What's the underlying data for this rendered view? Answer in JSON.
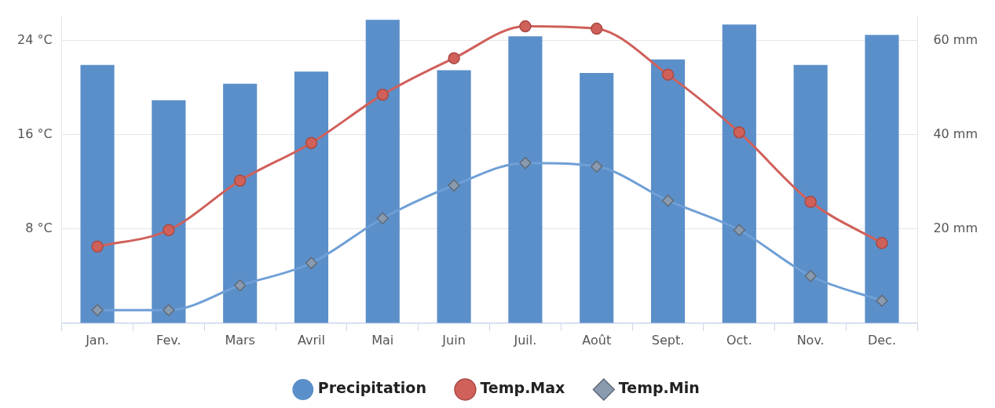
{
  "chart_data": {
    "type": "bar",
    "categories": [
      "Jan.",
      "Fev.",
      "Mars",
      "Avril",
      "Mai",
      "Juin",
      "Juil.",
      "Août",
      "Sept.",
      "Oct.",
      "Nov.",
      "Dec."
    ],
    "series": [
      {
        "name": "Precipitation",
        "axis": "y2",
        "color": "#5b8fc9",
        "values": [
          54.8,
          47.3,
          50.8,
          53.4,
          64.4,
          53.7,
          60.9,
          53.1,
          56.0,
          63.4,
          54.8,
          61.2
        ]
      },
      {
        "name": "Temp.Max",
        "type": "line",
        "axis": "y",
        "color": "#d0605a",
        "marker": "circle",
        "values": [
          6.5,
          7.9,
          12.1,
          15.3,
          19.4,
          22.5,
          25.2,
          25.0,
          21.1,
          16.2,
          10.3,
          6.8
        ]
      },
      {
        "name": "Temp.Min",
        "type": "line",
        "axis": "y",
        "color": "#6f9fd6",
        "marker": "diamond",
        "values": [
          1.1,
          1.1,
          3.2,
          5.1,
          8.9,
          11.7,
          13.6,
          13.3,
          10.4,
          7.9,
          4.0,
          1.9
        ]
      }
    ],
    "ylim": [
      0,
      26
    ],
    "yticks": [
      {
        "value": 8,
        "label": "8 °C"
      },
      {
        "value": 16,
        "label": "16 °C"
      },
      {
        "value": 24,
        "label": "24 °C"
      }
    ],
    "y2lim": [
      0,
      65
    ],
    "y2ticks": [
      {
        "value": 20,
        "label": "20 mm"
      },
      {
        "value": 40,
        "label": "40 mm"
      },
      {
        "value": 60,
        "label": "60 mm"
      }
    ],
    "grid": "y",
    "legend": "bottom",
    "line_style": "solid"
  }
}
